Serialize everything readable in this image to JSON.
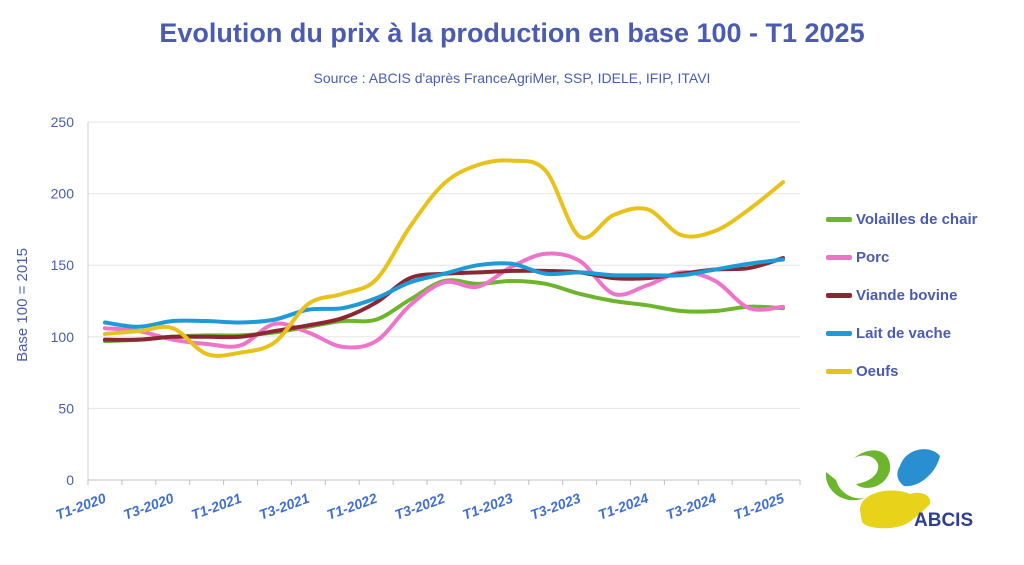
{
  "chart_data": {
    "type": "line",
    "title": "Evolution du prix à la production en base 100 - T1 2025",
    "subtitle": "Source : ABCIS d'après FranceAgriMer, SSP, IDELE, IFIP, ITAVI",
    "xlabel": "",
    "ylabel": "Base 100 = 2015",
    "ylim": [
      0,
      250
    ],
    "yticks": [
      0,
      50,
      100,
      150,
      200,
      250
    ],
    "x": [
      "T1-2020",
      "T2-2020",
      "T3-2020",
      "T4-2020",
      "T1-2021",
      "T2-2021",
      "T3-2021",
      "T4-2021",
      "T1-2022",
      "T2-2022",
      "T3-2022",
      "T4-2022",
      "T1-2023",
      "T2-2023",
      "T3-2023",
      "T4-2023",
      "T1-2024",
      "T2-2024",
      "T3-2024",
      "T4-2024",
      "T1-2025"
    ],
    "xtick_labels": [
      "T1-2020",
      "T3-2020",
      "T1-2021",
      "T3-2021",
      "T1-2022",
      "T3-2022",
      "T1-2023",
      "T3-2023",
      "T1-2024",
      "T3-2024",
      "T1-2025"
    ],
    "grid": true,
    "legend_position": "right",
    "series": [
      {
        "name": "Volailles de chair",
        "color": "#6cb52d",
        "values": [
          97,
          98,
          100,
          101,
          101,
          103,
          107,
          111,
          112,
          126,
          139,
          137,
          139,
          137,
          130,
          125,
          122,
          118,
          118,
          121,
          120
        ]
      },
      {
        "name": "Porc",
        "color": "#ee74c9",
        "values": [
          106,
          104,
          98,
          95,
          94,
          109,
          103,
          93,
          97,
          122,
          138,
          135,
          149,
          158,
          153,
          130,
          136,
          145,
          139,
          120,
          121
        ]
      },
      {
        "name": "Viande bovine",
        "color": "#8b2733",
        "values": [
          98,
          98,
          100,
          100,
          100,
          104,
          108,
          113,
          124,
          141,
          144,
          145,
          146,
          146,
          145,
          141,
          141,
          144,
          147,
          148,
          155
        ]
      },
      {
        "name": "Lait de vache",
        "color": "#1e9ad6",
        "values": [
          110,
          107,
          111,
          111,
          110,
          112,
          119,
          120,
          127,
          138,
          144,
          150,
          151,
          144,
          145,
          143,
          143,
          143,
          147,
          151,
          154
        ]
      },
      {
        "name": "Oeufs",
        "color": "#e8c21a",
        "values": [
          102,
          104,
          106,
          88,
          89,
          96,
          123,
          130,
          140,
          177,
          207,
          220,
          223,
          216,
          170,
          185,
          189,
          171,
          174,
          189,
          208
        ]
      }
    ]
  },
  "logo": {
    "text": "ABCIS"
  }
}
